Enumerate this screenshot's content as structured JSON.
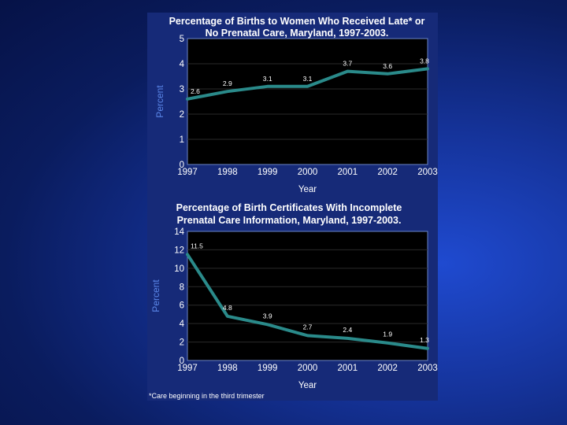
{
  "chart_data": [
    {
      "type": "line",
      "title": [
        "Percentage of Births to Women Who Received Late* or",
        "No Prenatal Care, Maryland, 1997-2003."
      ],
      "xlabel": "Year",
      "ylabel": "Percent",
      "categories": [
        "1997",
        "1998",
        "1999",
        "2000",
        "2001",
        "2002",
        "2003"
      ],
      "values": [
        2.6,
        2.9,
        3.1,
        3.1,
        3.7,
        3.6,
        3.8
      ],
      "data_labels": [
        "2.6",
        "2.9",
        "3.1",
        "3.1",
        "3.7",
        "3.6",
        "3.8"
      ],
      "yticks": [
        "0",
        "1",
        "2",
        "3",
        "4",
        "5"
      ],
      "ylim": [
        0,
        5
      ],
      "grid": true
    },
    {
      "type": "line",
      "title": [
        "Percentage of  Birth Certificates With Incomplete",
        "Prenatal Care Information, Maryland, 1997-2003."
      ],
      "xlabel": "Year",
      "ylabel": "Percent",
      "categories": [
        "1997",
        "1998",
        "1999",
        "2000",
        "2001",
        "2002",
        "2003"
      ],
      "values": [
        11.5,
        4.8,
        3.9,
        2.7,
        2.4,
        1.9,
        1.3
      ],
      "data_labels": [
        "11.5",
        "4.8",
        "3.9",
        "2.7",
        "2.4",
        "1.9",
        "1.3"
      ],
      "yticks": [
        "0",
        "2",
        "4",
        "6",
        "8",
        "10",
        "12",
        "14"
      ],
      "ylim": [
        0,
        14
      ],
      "grid": true
    }
  ],
  "footnote": "*Care beginning in the third trimester",
  "colors": {
    "series": "#2a8a8a",
    "axis_title": "#5a86e8",
    "plot_background": "#000000"
  }
}
